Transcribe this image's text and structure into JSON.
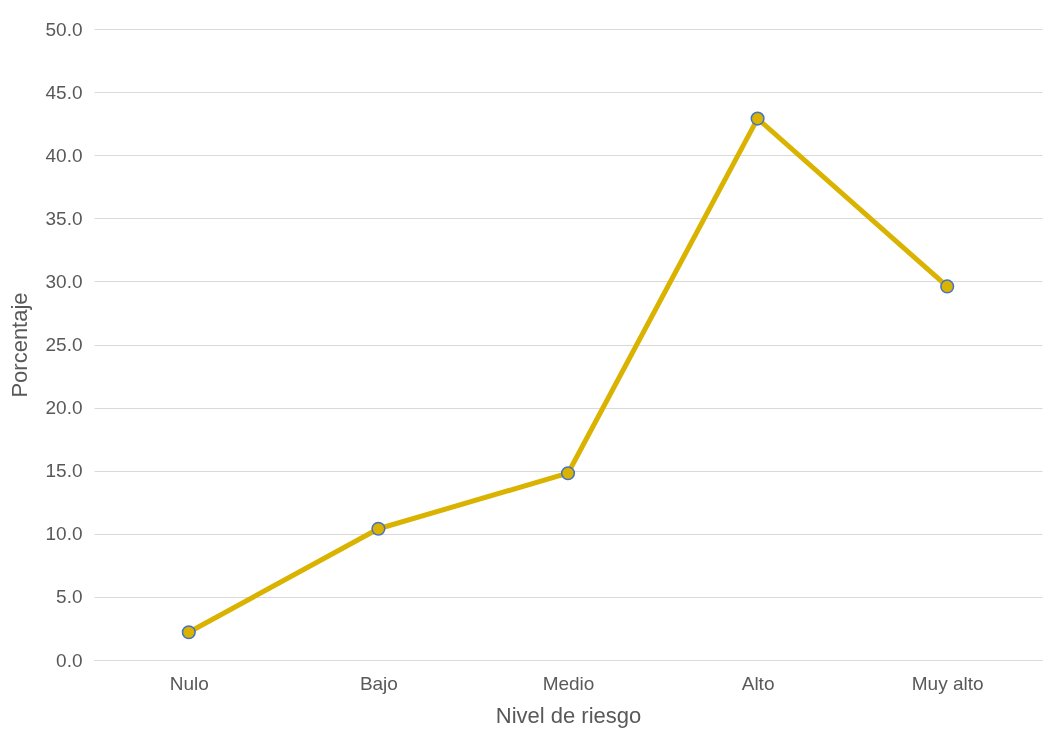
{
  "chart_data": {
    "type": "line",
    "xlabel": "Nivel de riesgo",
    "ylabel": "Porcentaje",
    "categories": [
      "Nulo",
      "Bajo",
      "Medio",
      "Alto",
      "Muy alto"
    ],
    "series": [
      {
        "color": "#d9b300",
        "values": [
          2.2,
          10.4,
          14.8,
          42.9,
          29.6
        ]
      }
    ],
    "ylim": [
      0,
      50
    ],
    "yticks": [
      {
        "value": 0,
        "label": "0.0"
      },
      {
        "value": 5,
        "label": "5.0"
      },
      {
        "value": 10,
        "label": "10.0"
      },
      {
        "value": 15,
        "label": "15.0"
      },
      {
        "value": 20,
        "label": "20.0"
      },
      {
        "value": 25,
        "label": "25.0"
      },
      {
        "value": 30,
        "label": "30.0"
      },
      {
        "value": 35,
        "label": "35.0"
      },
      {
        "value": 40,
        "label": "40.0"
      },
      {
        "value": 45,
        "label": "45.0"
      },
      {
        "value": 50,
        "label": "50.0"
      }
    ],
    "grid": "y",
    "marker": "circle",
    "line_style": "solid"
  }
}
